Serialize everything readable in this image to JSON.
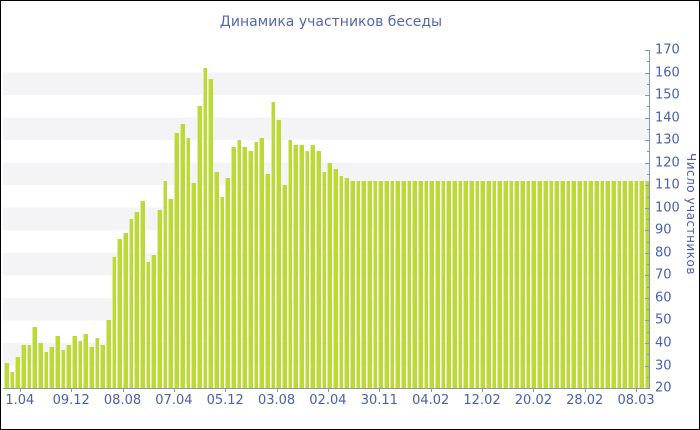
{
  "title": "Динамика участников беседы",
  "colors": {
    "bar": "#bcd937",
    "bar_highlight": "#dceda0",
    "axis_line": "#8a96b5",
    "tick_label": "#4a60a8",
    "title": "#5268ae",
    "stripe": "#f4f4f6",
    "background": "#ffffff",
    "border": "#000000"
  },
  "chart_data": {
    "type": "bar",
    "title": "Динамика участников беседы",
    "xlabel": "",
    "ylabel": "Число участников",
    "ylim": [
      20,
      170
    ],
    "y_tick_labels": [
      20,
      30,
      40,
      50,
      60,
      70,
      80,
      90,
      100,
      110,
      120,
      130,
      140,
      150,
      160,
      170
    ],
    "y_minor_tick_step": 5,
    "grid": "alternating horizontal stripes, 10-unit bands",
    "legend": "none",
    "x_tick_labels": [
      "1.04",
      "09.12",
      "08.08",
      "07.04",
      "05.12",
      "03.08",
      "02.04",
      "30.11",
      "04.02",
      "12.02",
      "20.02",
      "28.02",
      "08.03"
    ],
    "x_tick_first_pct": 2.6,
    "x_tick_last_pct": 98.0,
    "values": [
      31,
      27,
      34,
      39,
      39,
      47,
      40,
      36,
      38,
      43,
      37,
      39,
      43,
      41,
      44,
      38,
      42,
      39,
      50,
      78,
      86,
      89,
      95,
      98,
      103,
      76,
      79,
      99,
      112,
      104,
      133,
      137,
      131,
      111,
      145,
      162,
      157,
      116,
      105,
      113,
      127,
      130,
      127,
      125,
      129,
      131,
      115,
      147,
      139,
      110,
      130,
      128,
      128,
      125,
      128,
      125,
      116,
      120,
      117,
      114,
      113,
      112,
      112,
      112,
      112,
      112,
      112,
      112,
      112,
      112,
      112,
      112,
      112,
      112,
      112,
      112,
      112,
      112,
      112,
      112,
      112,
      112,
      112,
      112,
      112,
      112,
      112,
      112,
      112,
      112,
      112,
      112,
      112,
      112,
      112,
      112,
      112,
      112,
      112,
      112,
      112,
      112,
      112,
      112,
      112,
      112,
      112,
      112,
      112,
      112,
      112,
      112,
      112,
      112
    ]
  }
}
